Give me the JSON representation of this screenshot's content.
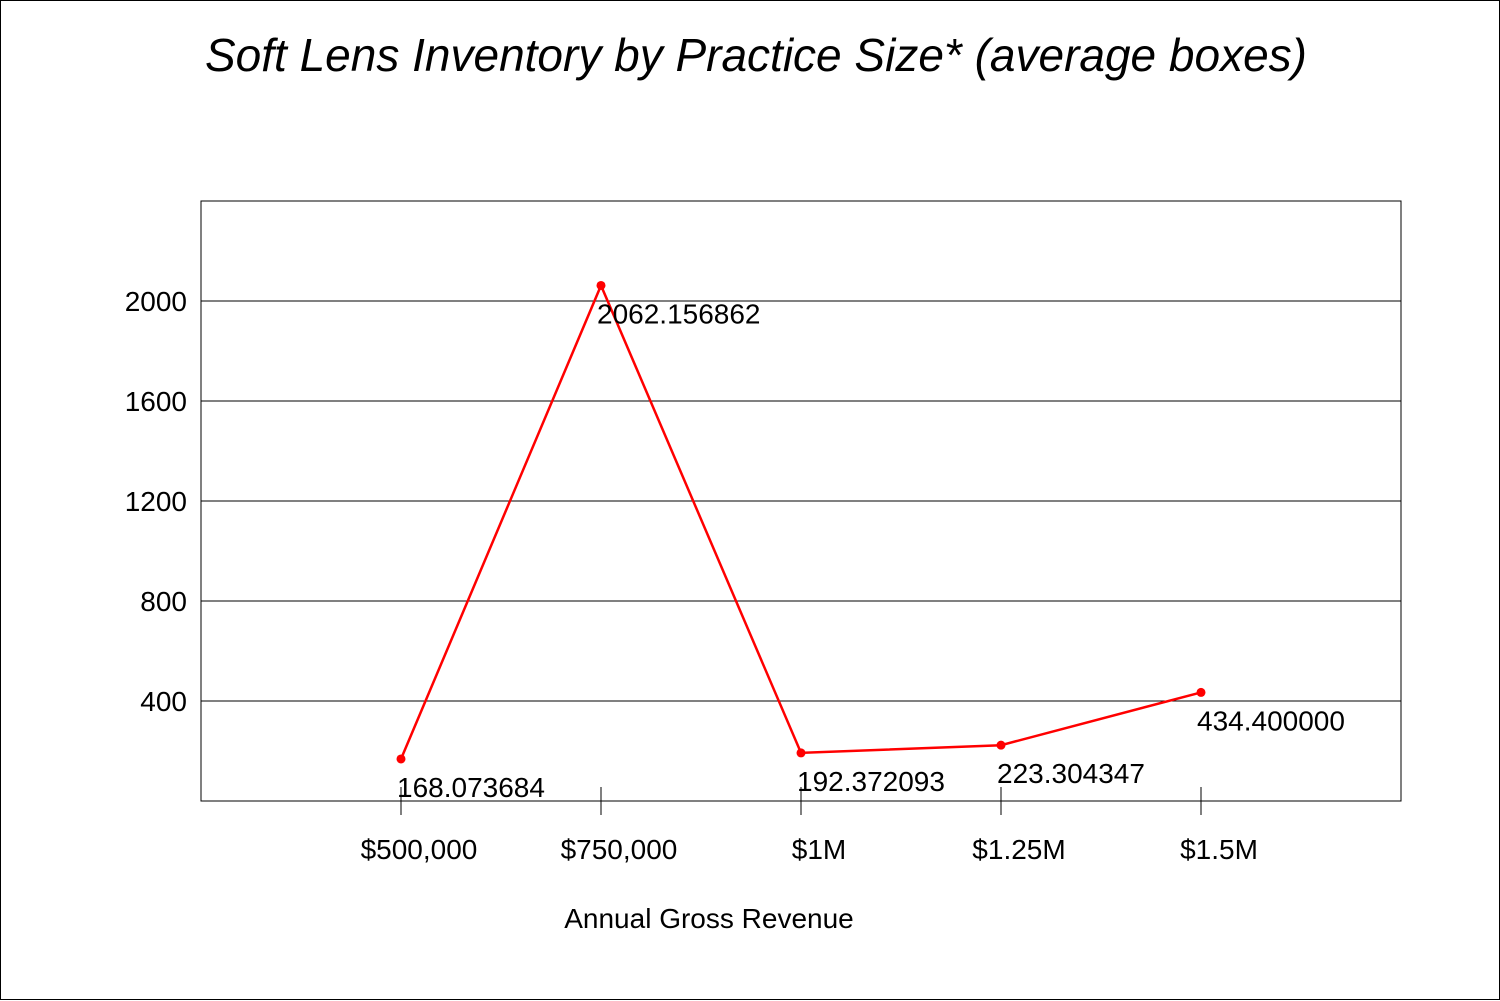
{
  "chart_data": {
    "type": "line",
    "title": "Soft Lens Inventory by Practice Size* (average boxes)",
    "xlabel": "Annual Gross Revenue",
    "ylabel": "",
    "categories": [
      "$500,000",
      "$750,000",
      "$1M",
      "$1.25M",
      "$1.5M"
    ],
    "series": [
      {
        "values": [
          168.073684,
          2062.156862,
          192.372093,
          223.304347,
          434.4
        ],
        "labels": [
          "168.073684",
          "2062.156862",
          "192.372093",
          "223.304347",
          "434.400000"
        ],
        "color": "#ff0000"
      }
    ],
    "yticks": [
      "400",
      "800",
      "1200",
      "1600",
      "2000"
    ],
    "ytick_values": [
      400,
      800,
      1200,
      1600,
      2000
    ],
    "ylim": [
      0,
      2400
    ],
    "grid": true,
    "legend": "none"
  }
}
